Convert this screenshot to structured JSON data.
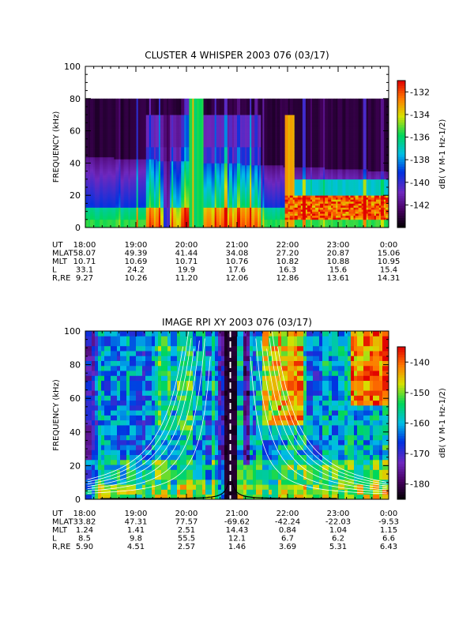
{
  "chart_data": [
    {
      "type": "heatmap",
      "title": "CLUSTER 4 WHISPER 2003 076 (03/17)",
      "ylabel": "FREQUENCY (kHz)",
      "ylim": [
        0,
        100
      ],
      "yticks": [
        "0",
        "20",
        "40",
        "60",
        "80",
        "100"
      ],
      "data_ceiling_khz": 80,
      "xlim": [
        "18:00",
        "0:00"
      ],
      "colorbar": {
        "label": "dB( V M-1 Hz-1/2)",
        "range": [
          -144,
          -131
        ],
        "ticks": [
          "-132",
          "-134",
          "-136",
          "-138",
          "-140",
          "-142"
        ],
        "colormap": "rainbow: black, purple, blue, cyan, green, yellow, red"
      },
      "features": {
        "background_level_db": -142,
        "broadband_emission_khz": [
          0,
          40
        ],
        "band_edge_khz_start_end": [
          44,
          35
        ],
        "intense_band_after_2200_khz": [
          5,
          20
        ]
      },
      "ephemeris": {
        "row_labels": [
          "UT",
          "MLAT",
          "MLT",
          "L",
          "R,RE"
        ],
        "columns": [
          [
            "18:00",
            "58.07",
            "10.71",
            "33.1",
            "9.27"
          ],
          [
            "19:00",
            "49.39",
            "10.69",
            "24.2",
            "10.26"
          ],
          [
            "20:00",
            "41.44",
            "10.71",
            "19.9",
            "11.20"
          ],
          [
            "21:00",
            "34.08",
            "10.76",
            "17.6",
            "12.06"
          ],
          [
            "22:00",
            "27.20",
            "10.82",
            "16.3",
            "12.86"
          ],
          [
            "23:00",
            "20.87",
            "10.88",
            "15.6",
            "13.61"
          ],
          [
            "0:00",
            "15.06",
            "10.95",
            "15.4",
            "14.31"
          ]
        ]
      }
    },
    {
      "type": "heatmap",
      "title": "IMAGE RPI XY 2003 076 (03/17)",
      "ylabel": "FREQUENCY (kHz)",
      "ylim": [
        0,
        100
      ],
      "yticks": [
        "0",
        "20",
        "40",
        "60",
        "80",
        "100"
      ],
      "xlim": [
        "18:00",
        "0:00"
      ],
      "colorbar": {
        "label": "dB( V M-1 Hz-1/2)",
        "range": [
          -185,
          -135
        ],
        "ticks": [
          "-140",
          "-150",
          "-160",
          "-170",
          "-180"
        ],
        "colormap": "rainbow: black, purple, blue, cyan, green, yellow, red"
      },
      "features": {
        "perigee_ut": "20:45",
        "dark_gap_ut": [
          "20:30",
          "21:05"
        ],
        "red_regions_ut": [
          [
            "21:40",
            "22:25"
          ],
          [
            "23:25",
            "24:00"
          ]
        ]
      },
      "ephemeris": {
        "row_labels": [
          "UT",
          "MLAT",
          "MLT",
          "L",
          "R,RE"
        ],
        "columns": [
          [
            "18:00",
            "33.82",
            "1.24",
            "8.5",
            "5.90"
          ],
          [
            "19:00",
            "47.31",
            "1.41",
            "9.8",
            "4.51"
          ],
          [
            "20:00",
            "77.57",
            "2.51",
            "55.5",
            "2.57"
          ],
          [
            "21:00",
            "-69.62",
            "14.43",
            "12.1",
            "1.46"
          ],
          [
            "22:00",
            "-42.24",
            "0.84",
            "6.7",
            "3.69"
          ],
          [
            "23:00",
            "-22.03",
            "1.04",
            "6.2",
            "5.31"
          ],
          [
            "0:00",
            "-9.53",
            "1.15",
            "6.6",
            "6.43"
          ]
        ]
      }
    }
  ]
}
